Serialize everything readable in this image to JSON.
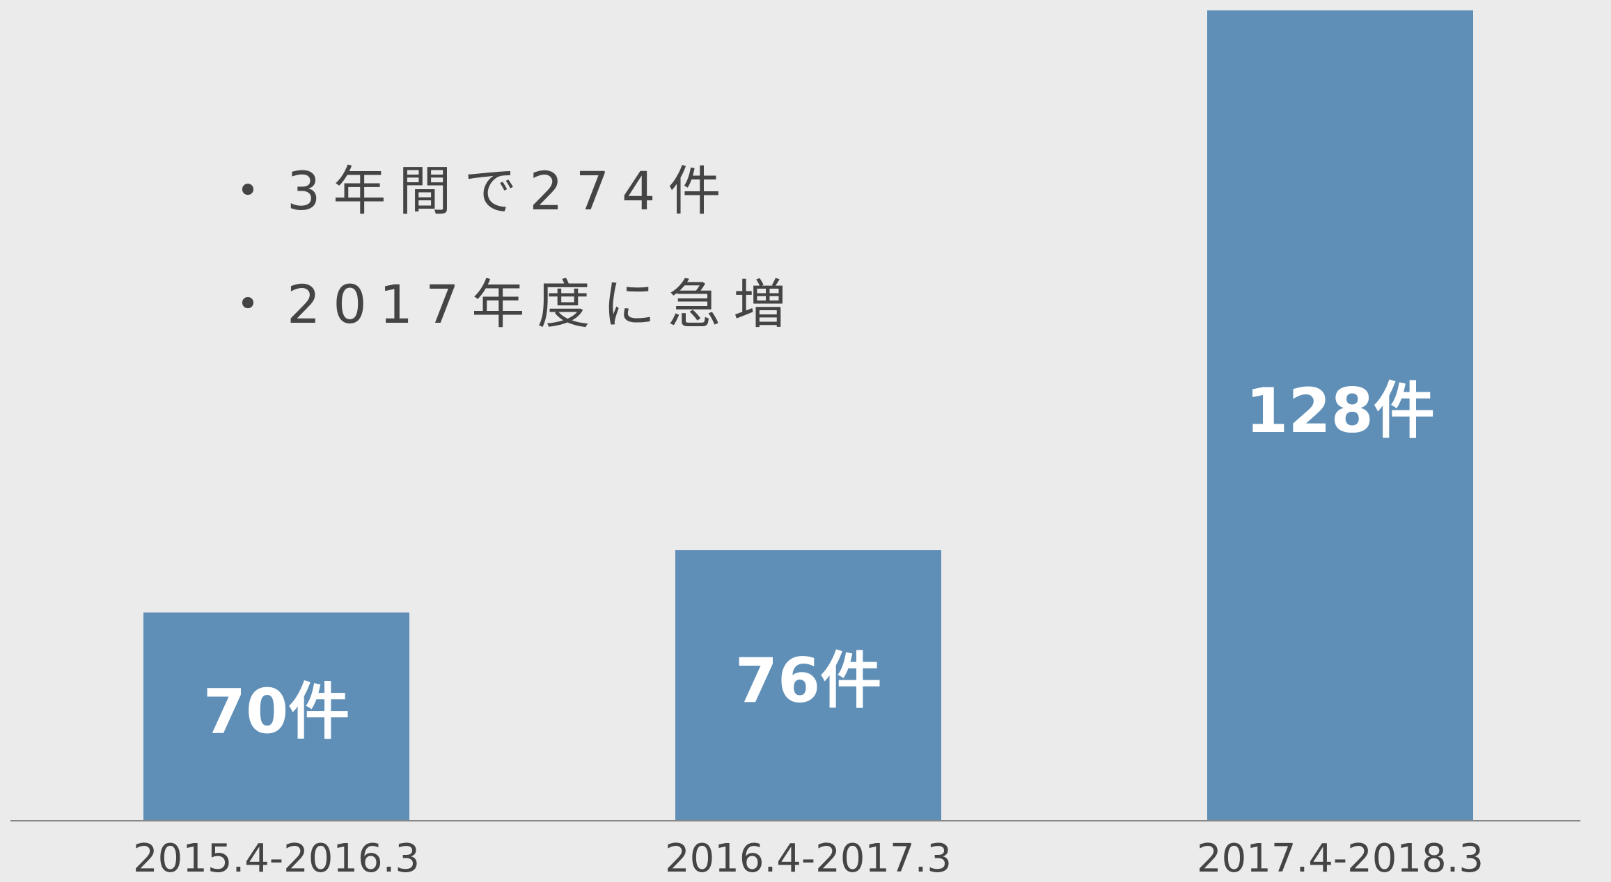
{
  "chart_data": {
    "type": "bar",
    "annotations": [
      "・3年間で274件",
      "・2017年度に急増"
    ],
    "categories": [
      "2015.4-2016.3",
      "2016.4-2017.3",
      "2017.4-2018.3"
    ],
    "values": [
      70,
      76,
      128
    ],
    "value_labels": [
      "70件",
      "76件",
      "128件"
    ],
    "color": "#5f8fb7",
    "ylim": [
      50,
      129
    ]
  }
}
